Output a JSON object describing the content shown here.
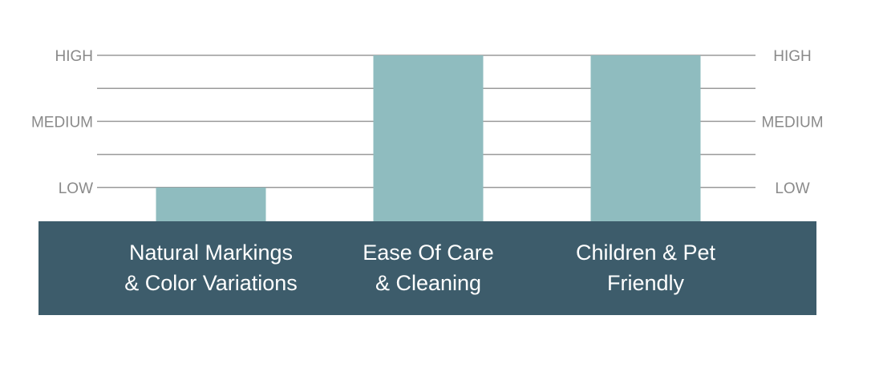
{
  "chart_data": {
    "type": "bar",
    "categories": [
      "Natural Markings\n& Color Variations",
      "Ease Of Care\n& Cleaning",
      "Children & Pet\nFriendly"
    ],
    "values": [
      1,
      3,
      3
    ],
    "color": "#8fbcbf",
    "ylim": [
      0.5,
      3
    ],
    "yticks": [
      {
        "value": 1,
        "label": "LOW"
      },
      {
        "value": 1.5,
        "label": null
      },
      {
        "value": 2,
        "label": "MEDIUM"
      },
      {
        "value": 2.5,
        "label": null
      },
      {
        "value": 3,
        "label": "HIGH"
      }
    ],
    "grid": true
  }
}
